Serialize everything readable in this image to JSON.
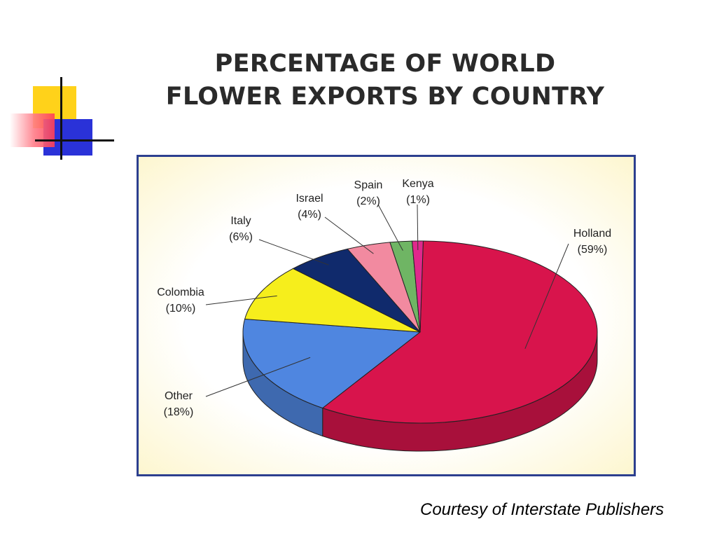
{
  "title_lines": [
    "PERCENTAGE OF WORLD",
    "FLOWER EXPORTS BY COUNTRY"
  ],
  "credit": "Courtesy of Interstate Publishers",
  "colors": {
    "Holland": "#d8144c",
    "Other": "#4f86e0",
    "Colombia": "#f6ee1c",
    "Italy": "#102a6c",
    "Israel": "#f28aa0",
    "Spain": "#6fb564",
    "Kenya": "#e0288c",
    "panel_border": "#2c3f8f"
  },
  "chart_data": {
    "type": "pie",
    "title": "PERCENTAGE OF WORLD FLOWER EXPORTS BY COUNTRY",
    "slices": [
      {
        "label": "Holland",
        "value": 59,
        "text": "(59%)"
      },
      {
        "label": "Other",
        "value": 18,
        "text": "(18%)"
      },
      {
        "label": "Colombia",
        "value": 10,
        "text": "(10%)"
      },
      {
        "label": "Italy",
        "value": 6,
        "text": "(6%)"
      },
      {
        "label": "Israel",
        "value": 4,
        "text": "(4%)"
      },
      {
        "label": "Spain",
        "value": 2,
        "text": "(2%)"
      },
      {
        "label": "Kenya",
        "value": 1,
        "text": "(1%)"
      }
    ]
  }
}
